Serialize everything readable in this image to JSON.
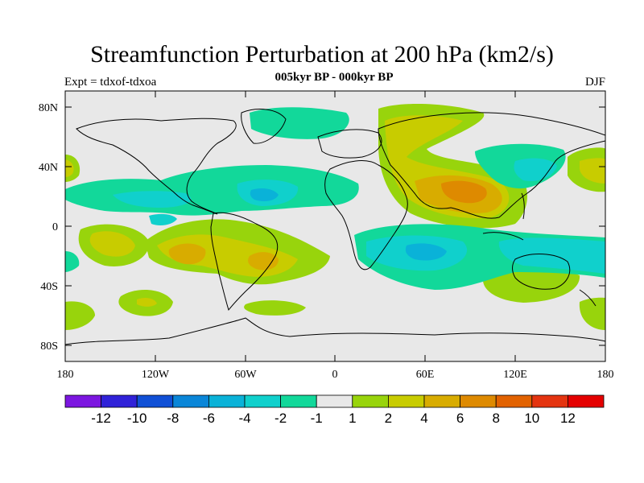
{
  "title": "Streamfunction Perturbation at 200 hPa (km2/s)",
  "subtitle": "005kyr BP - 000kyr BP",
  "left_label": "Expt = tdxof-tdxoa",
  "right_label": "DJF",
  "lat_ticks": [
    "80N",
    "40N",
    "0",
    "40S",
    "80S"
  ],
  "lon_ticks": [
    "180",
    "120W",
    "60W",
    "0",
    "60E",
    "120E",
    "180"
  ],
  "colorbar": {
    "colors": [
      "#7c16e0",
      "#3022d8",
      "#1050d6",
      "#0a86d8",
      "#0ab2d8",
      "#10d0cc",
      "#12d89a",
      "#e8e8e8",
      "#98d40c",
      "#c8cc00",
      "#d8ac00",
      "#de8a00",
      "#e26200",
      "#e43410",
      "#e40000"
    ],
    "labels": [
      "-12",
      "-10",
      "-8",
      "-6",
      "-4",
      "-2",
      "-1",
      "1",
      "2",
      "4",
      "6",
      "8",
      "10",
      "12"
    ]
  },
  "chart_data": {
    "type": "heatmap",
    "title": "Streamfunction Perturbation at 200 hPa (km2/s)",
    "subtitle": "005kyr BP - 000kyr BP",
    "season": "DJF",
    "experiment": "Expt = tdxof-tdxoa",
    "x_range": [
      -180,
      180
    ],
    "y_range": [
      -90,
      90
    ],
    "contour_levels": [
      -12,
      -10,
      -8,
      -6,
      -4,
      -2,
      -1,
      1,
      2,
      4,
      6,
      8,
      10,
      12
    ],
    "features": [
      {
        "lon": 75,
        "lat": 20,
        "value": 7
      },
      {
        "lon": 60,
        "lat": 60,
        "value": 3
      },
      {
        "lon": -100,
        "lat": -18,
        "value": 5
      },
      {
        "lon": -55,
        "lat": -22,
        "value": 5
      },
      {
        "lon": -150,
        "lat": -10,
        "value": 4
      },
      {
        "lon": -160,
        "lat": -50,
        "value": 2
      },
      {
        "lon": 55,
        "lat": -20,
        "value": -4
      },
      {
        "lon": 120,
        "lat": -20,
        "value": -3
      },
      {
        "lon": -50,
        "lat": 20,
        "value": -3
      },
      {
        "lon": -120,
        "lat": 15,
        "value": -3
      },
      {
        "lon": 170,
        "lat": 40,
        "value": 2
      },
      {
        "lon": 130,
        "lat": 40,
        "value": -2
      },
      {
        "lon": -40,
        "lat": -55,
        "value": 2
      },
      {
        "lon": 170,
        "lat": -50,
        "value": 2
      }
    ]
  }
}
